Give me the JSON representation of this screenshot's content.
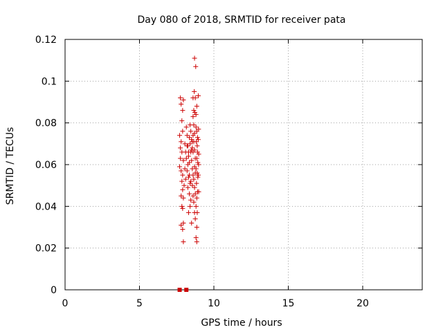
{
  "chart_data": {
    "type": "scatter",
    "title": "Day 080 of 2018, SRMTID for receiver pata",
    "xlabel": "GPS time / hours",
    "ylabel": "SRMTID / TECUs",
    "xlim": [
      0,
      24
    ],
    "ylim": [
      0,
      0.12
    ],
    "xticks": [
      0,
      5,
      10,
      15,
      20
    ],
    "yticks": [
      0,
      0.02,
      0.04,
      0.06,
      0.08,
      0.1,
      0.12
    ],
    "xtick_labels": [
      "0",
      "5",
      "10",
      "15",
      "20"
    ],
    "ytick_labels": [
      "0",
      "0.02",
      "0.04",
      "0.06",
      "0.08",
      "0.1",
      "0.12"
    ],
    "grid": true,
    "marker": "+",
    "color": "#cc0000",
    "series": [
      {
        "points": [
          [
            7.75,
            0.092
          ],
          [
            7.8,
            0.089
          ],
          [
            7.85,
            0.081
          ],
          [
            7.95,
            0.091
          ],
          [
            7.9,
            0.086
          ],
          [
            7.7,
            0.074
          ],
          [
            7.8,
            0.071
          ],
          [
            7.9,
            0.076
          ],
          [
            7.75,
            0.068
          ],
          [
            7.85,
            0.066
          ],
          [
            7.95,
            0.062
          ],
          [
            7.7,
            0.059
          ],
          [
            7.8,
            0.057
          ],
          [
            7.9,
            0.055
          ],
          [
            7.75,
            0.063
          ],
          [
            7.85,
            0.052
          ],
          [
            8.0,
            0.05
          ],
          [
            7.9,
            0.048
          ],
          [
            7.8,
            0.045
          ],
          [
            7.95,
            0.044
          ],
          [
            7.85,
            0.04
          ],
          [
            7.9,
            0.039
          ],
          [
            7.95,
            0.032
          ],
          [
            7.8,
            0.031
          ],
          [
            7.9,
            0.029
          ],
          [
            7.95,
            0.023
          ],
          [
            8.05,
            0.07
          ],
          [
            8.1,
            0.066
          ],
          [
            8.05,
            0.058
          ],
          [
            8.1,
            0.053
          ],
          [
            8.15,
            0.078
          ],
          [
            8.2,
            0.074
          ],
          [
            8.25,
            0.069
          ],
          [
            8.3,
            0.064
          ],
          [
            8.35,
            0.061
          ],
          [
            8.2,
            0.057
          ],
          [
            8.3,
            0.054
          ],
          [
            8.4,
            0.051
          ],
          [
            8.25,
            0.049
          ],
          [
            8.35,
            0.046
          ],
          [
            8.45,
            0.043
          ],
          [
            8.3,
            0.037
          ],
          [
            8.5,
            0.032
          ],
          [
            8.4,
            0.079
          ],
          [
            8.45,
            0.076
          ],
          [
            8.5,
            0.072
          ],
          [
            8.55,
            0.068
          ],
          [
            8.6,
            0.066
          ],
          [
            8.5,
            0.062
          ],
          [
            8.55,
            0.058
          ],
          [
            8.6,
            0.055
          ],
          [
            8.45,
            0.052
          ],
          [
            8.55,
            0.05
          ],
          [
            8.65,
            0.086
          ],
          [
            8.6,
            0.083
          ],
          [
            8.65,
            0.079
          ],
          [
            8.7,
            0.075
          ],
          [
            8.65,
            0.071
          ],
          [
            8.7,
            0.067
          ],
          [
            8.75,
            0.063
          ],
          [
            8.7,
            0.059
          ],
          [
            8.75,
            0.056
          ],
          [
            8.65,
            0.053
          ],
          [
            8.7,
            0.049
          ],
          [
            8.75,
            0.046
          ],
          [
            8.65,
            0.042
          ],
          [
            8.7,
            0.037
          ],
          [
            8.75,
            0.034
          ],
          [
            8.7,
            0.111
          ],
          [
            8.78,
            0.107
          ],
          [
            8.68,
            0.095
          ],
          [
            8.75,
            0.092
          ],
          [
            8.72,
            0.085
          ],
          [
            8.8,
            0.084
          ],
          [
            8.85,
            0.088
          ],
          [
            8.8,
            0.078
          ],
          [
            8.85,
            0.076
          ],
          [
            8.9,
            0.073
          ],
          [
            8.82,
            0.071
          ],
          [
            8.88,
            0.069
          ],
          [
            8.9,
            0.066
          ],
          [
            8.85,
            0.063
          ],
          [
            8.92,
            0.061
          ],
          [
            8.8,
            0.058
          ],
          [
            8.88,
            0.056
          ],
          [
            8.92,
            0.054
          ],
          [
            8.83,
            0.051
          ],
          [
            8.9,
            0.047
          ],
          [
            8.85,
            0.044
          ],
          [
            8.8,
            0.04
          ],
          [
            8.88,
            0.037
          ],
          [
            8.85,
            0.03
          ],
          [
            8.8,
            0.025
          ],
          [
            8.85,
            0.023
          ],
          [
            8.95,
            0.093
          ],
          [
            8.97,
            0.077
          ],
          [
            8.95,
            0.072
          ],
          [
            8.98,
            0.065
          ],
          [
            8.97,
            0.06
          ],
          [
            8.95,
            0.055
          ],
          [
            8.98,
            0.047
          ],
          [
            8.6,
            0.092
          ],
          [
            8.4,
            0.07
          ],
          [
            8.35,
            0.073
          ],
          [
            8.15,
            0.063
          ],
          [
            8.25,
            0.06
          ],
          [
            8.45,
            0.066
          ],
          [
            8.55,
            0.071
          ],
          [
            8.6,
            0.045
          ],
          [
            8.4,
            0.04
          ],
          [
            8.5,
            0.067
          ],
          [
            8.35,
            0.055
          ],
          [
            8.3,
            0.066
          ],
          [
            8.2,
            0.069
          ],
          [
            8.6,
            0.074
          ]
        ]
      },
      {
        "marker": "square",
        "points": [
          [
            7.7,
            0.0
          ],
          [
            8.15,
            0.0
          ]
        ]
      }
    ]
  }
}
